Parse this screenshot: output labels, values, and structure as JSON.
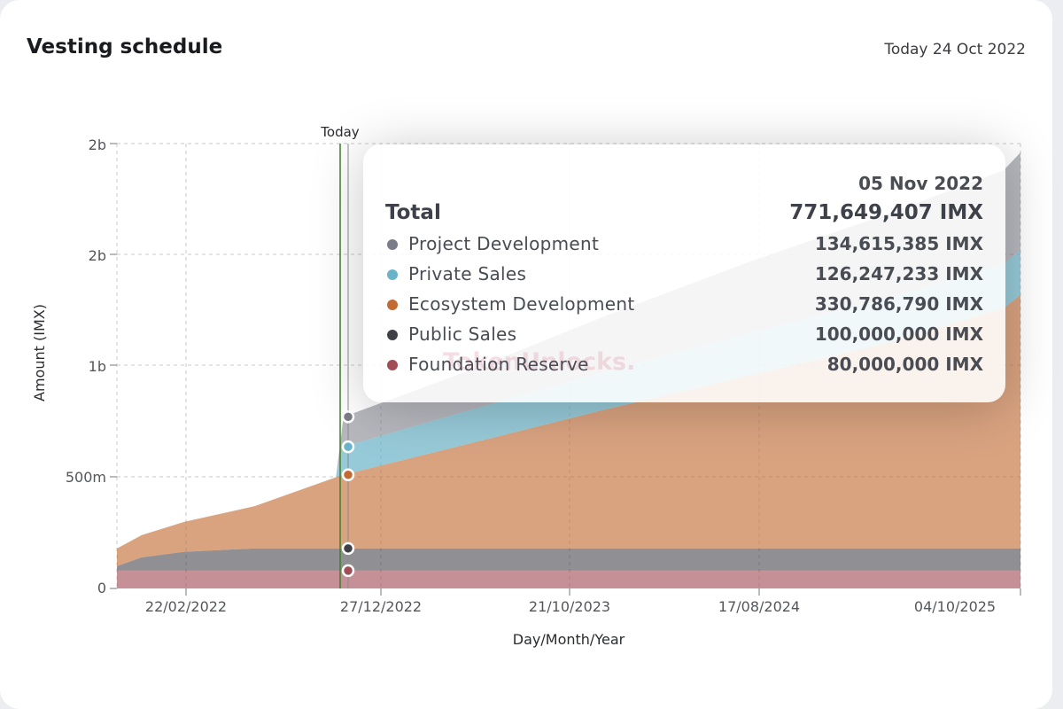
{
  "header": {
    "title": "Vesting schedule",
    "today_text": "Today 24 Oct 2022"
  },
  "chart_data": {
    "type": "area",
    "stacked": true,
    "title": "Vesting schedule",
    "xlabel": "Day/Month/Year",
    "ylabel": "Amount (IMX)",
    "x_tick_labels": [
      "22/02/2022",
      "27/12/2022",
      "21/10/2023",
      "17/08/2024",
      "04/10/2025"
    ],
    "y_tick_labels": [
      "0",
      "500m",
      "1b",
      "2b",
      "2b"
    ],
    "ylim": [
      0,
      2000000000
    ],
    "today_marker": "Today",
    "grid": true,
    "x_dates": [
      "2021-11-05",
      "2021-12-15",
      "2022-02-22",
      "2022-06-15",
      "2022-10-24",
      "2022-11-05",
      "2023-06-01",
      "2024-01-01",
      "2024-08-17",
      "2025-04-01",
      "2025-10-04",
      "2025-10-31"
    ],
    "series": [
      {
        "name": "Foundation Reserve",
        "color": "#a14d56",
        "values": [
          80000000,
          80000000,
          80000000,
          80000000,
          80000000,
          80000000,
          80000000,
          80000000,
          80000000,
          80000000,
          80000000,
          80000000
        ]
      },
      {
        "name": "Public Sales",
        "color": "#3f4046",
        "values": [
          20000000,
          60000000,
          85000000,
          100000000,
          100000000,
          100000000,
          100000000,
          100000000,
          100000000,
          100000000,
          100000000,
          100000000
        ]
      },
      {
        "name": "Ecosystem Development",
        "color": "#c26a32",
        "values": [
          80000000,
          100000000,
          135000000,
          190000000,
          320000000,
          330786790,
          475000000,
          625000000,
          775000000,
          925000000,
          1080000000,
          1140000000
        ]
      },
      {
        "name": "Private Sales",
        "color": "#6bb3c8",
        "values": [
          0,
          0,
          0,
          0,
          0,
          126247233,
          150000000,
          170000000,
          190000000,
          200000000,
          200000000,
          200000000
        ]
      },
      {
        "name": "Project Development",
        "color": "#7a7d89",
        "values": [
          0,
          0,
          0,
          0,
          0,
          134615385,
          180000000,
          250000000,
          320000000,
          380000000,
          420000000,
          440000000
        ]
      }
    ]
  },
  "tooltip": {
    "date": "05 Nov 2022",
    "total_label": "Total",
    "total_value": "771,649,407 IMX",
    "rows": [
      {
        "name": "Project Development",
        "value": "134,615,385 IMX",
        "color": "#7a7d89"
      },
      {
        "name": "Private Sales",
        "value": "126,247,233 IMX",
        "color": "#6bb3c8"
      },
      {
        "name": "Ecosystem Development",
        "value": "330,786,790 IMX",
        "color": "#c26a32"
      },
      {
        "name": "Public Sales",
        "value": "100,000,000 IMX",
        "color": "#3f4046"
      },
      {
        "name": "Foundation Reserve",
        "value": "80,000,000 IMX",
        "color": "#a14d56"
      }
    ]
  },
  "watermark": "TokenUnlocks."
}
